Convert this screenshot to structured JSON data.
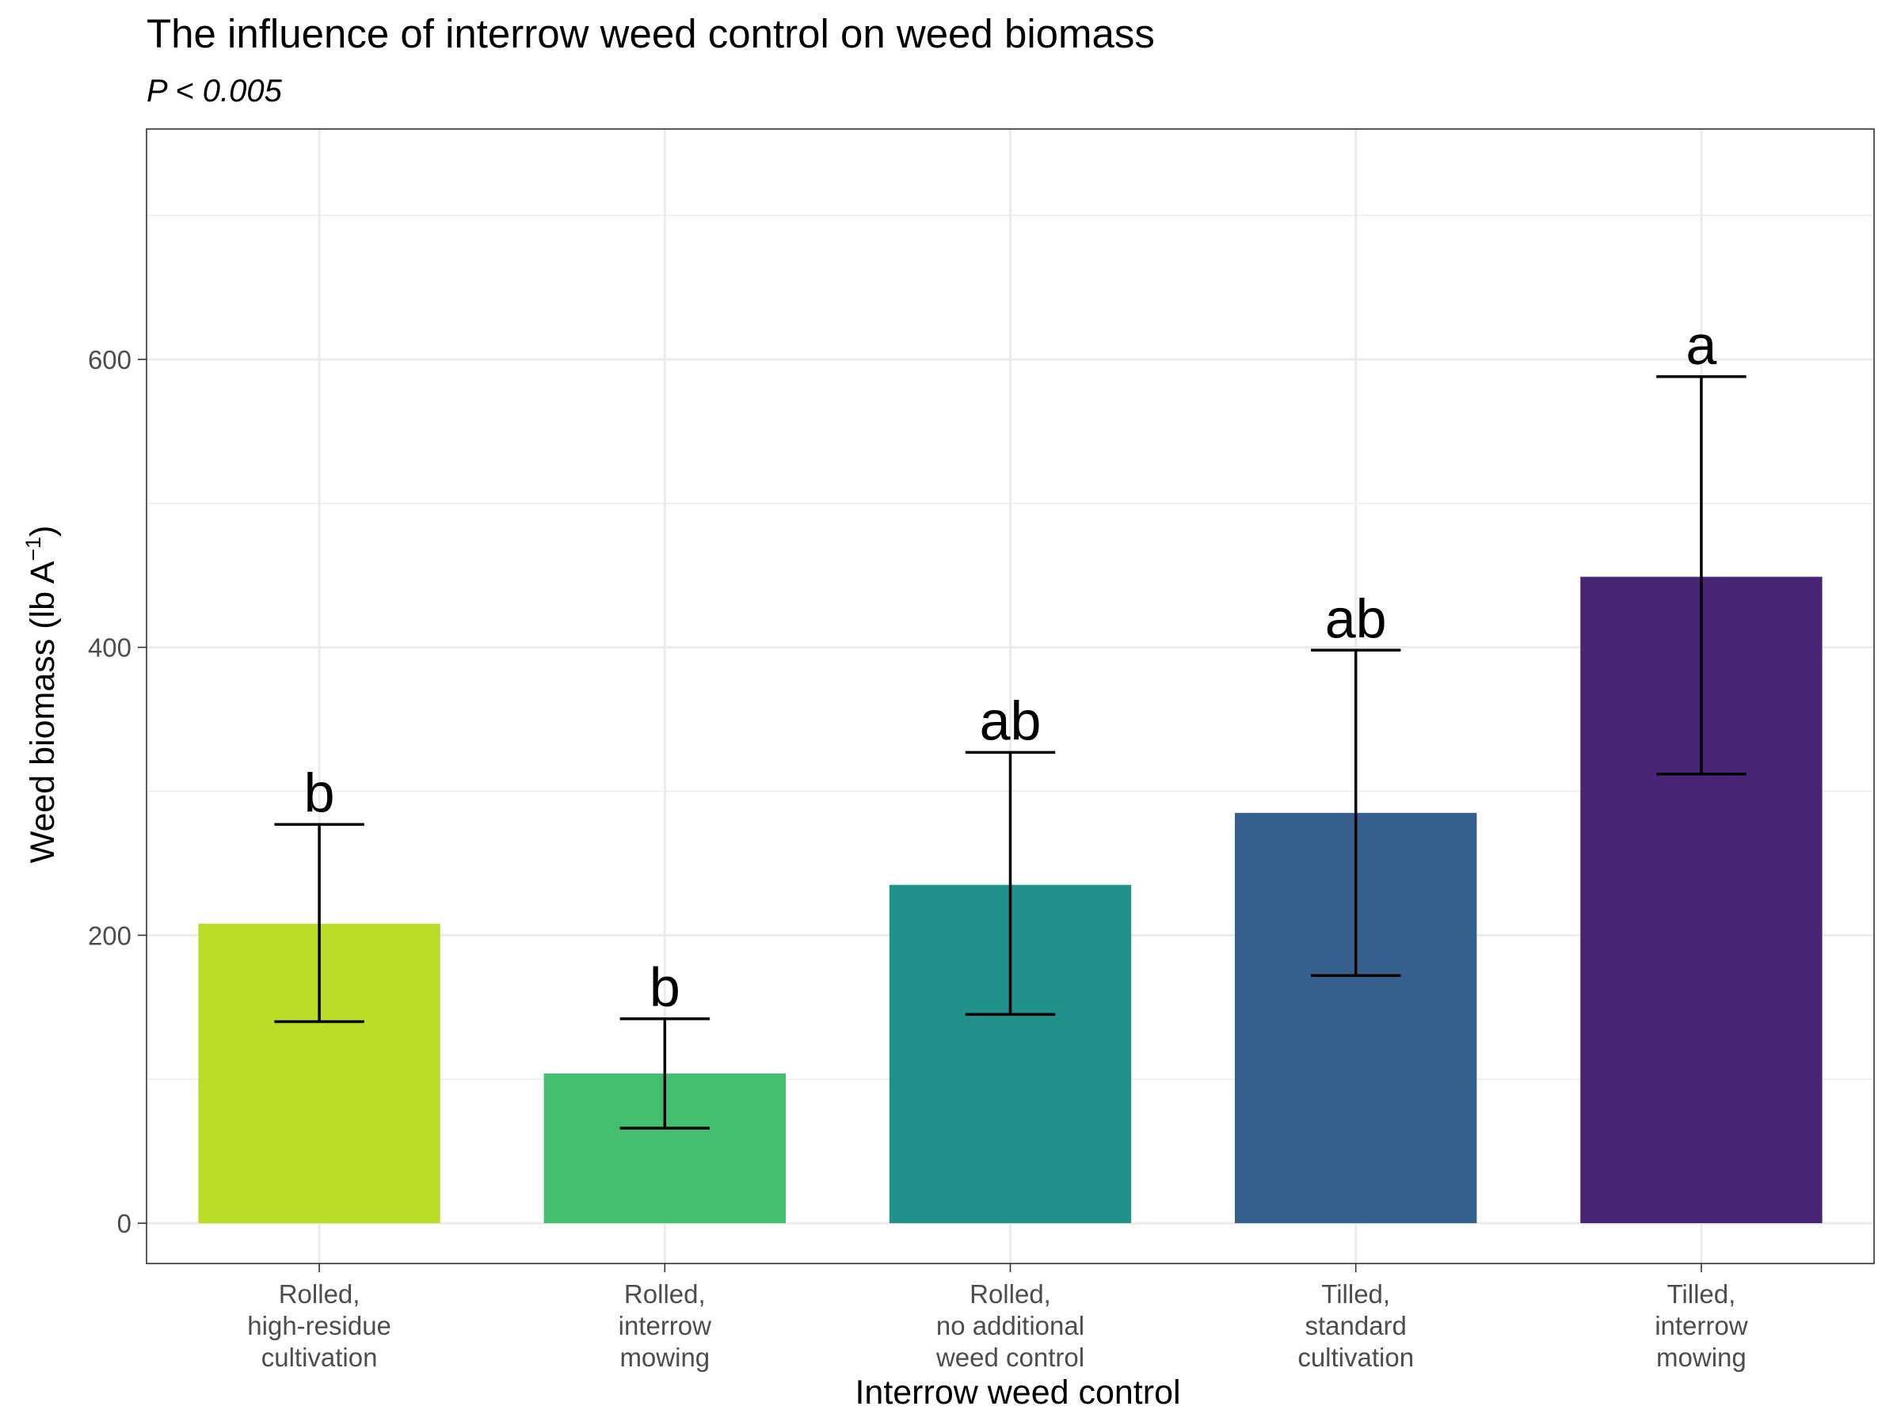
{
  "chart_data": {
    "type": "bar",
    "title": "The influence of interrow weed control on weed biomass",
    "subtitle": "P < 0.005",
    "xlabel": "Interrow weed control",
    "ylabel": "Weed biomass (lb A",
    "ylabel_superscript": "−1",
    "ylabel_suffix": ")",
    "ylim": [
      -28,
      760
    ],
    "yticks": [
      0,
      200,
      400,
      600
    ],
    "ytick_labels": [
      "0",
      "200",
      "400",
      "600"
    ],
    "grid": true,
    "categories": [
      [
        "Rolled,",
        "high-residue",
        "cultivation"
      ],
      [
        "Rolled,",
        "interrow",
        "mowing"
      ],
      [
        "Rolled,",
        "no additional",
        "weed control"
      ],
      [
        "Tilled,",
        "standard",
        "cultivation"
      ],
      [
        "Tilled,",
        "interrow",
        "mowing"
      ]
    ],
    "values": [
      208,
      104,
      235,
      285,
      449
    ],
    "error_low": [
      140,
      66,
      145,
      172,
      312
    ],
    "error_high": [
      277,
      142,
      327,
      398,
      588
    ],
    "significance_letters": [
      "b",
      "b",
      "ab",
      "ab",
      "a"
    ],
    "colors": [
      "#bade28",
      "#44bf70",
      "#21918c",
      "#355f8d",
      "#482475"
    ]
  }
}
